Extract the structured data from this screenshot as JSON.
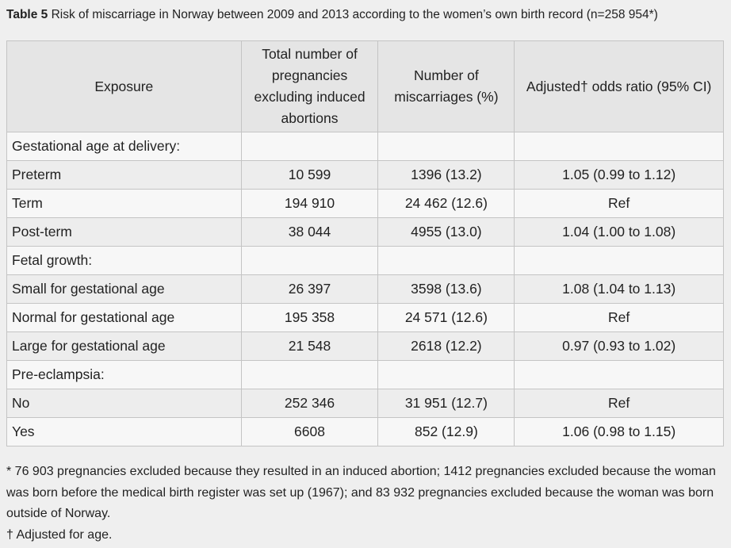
{
  "title": {
    "label": "Table 5",
    "text": " Risk of miscarriage in Norway between 2009 and 2013 according to the women’s own birth record (n=258 954*)"
  },
  "headers": {
    "exposure": "Exposure",
    "total": "Total number of pregnancies excluding induced abortions",
    "miscarriages": "Number of miscarriages (%)",
    "odds": "Adjusted† odds ratio (95% CI)"
  },
  "rows": [
    {
      "label": "Gestational age at delivery:",
      "total": "",
      "misc": "",
      "or": ""
    },
    {
      "label": "Preterm",
      "total": "10 599",
      "misc": "1396 (13.2)",
      "or": "1.05 (0.99 to 1.12)"
    },
    {
      "label": "Term",
      "total": "194 910",
      "misc": "24 462 (12.6)",
      "or": "Ref"
    },
    {
      "label": "Post-term",
      "total": "38 044",
      "misc": "4955 (13.0)",
      "or": "1.04 (1.00 to 1.08)"
    },
    {
      "label": "Fetal growth:",
      "total": "",
      "misc": "",
      "or": ""
    },
    {
      "label": "Small for gestational age",
      "total": "26 397",
      "misc": "3598 (13.6)",
      "or": "1.08 (1.04 to 1.13)"
    },
    {
      "label": "Normal for gestational age",
      "total": "195 358",
      "misc": "24 571 (12.6)",
      "or": "Ref"
    },
    {
      "label": "Large for gestational age",
      "total": "21 548",
      "misc": "2618 (12.2)",
      "or": "0.97 (0.93 to 1.02)"
    },
    {
      "label": "Pre-eclampsia:",
      "total": "",
      "misc": "",
      "or": ""
    },
    {
      "label": "No",
      "total": "252 346",
      "misc": "31 951 (12.7)",
      "or": "Ref"
    },
    {
      "label": "Yes",
      "total": "6608",
      "misc": "852 (12.9)",
      "or": "1.06 (0.98 to 1.15)"
    }
  ],
  "footnotes": {
    "star": "* 76 903 pregnancies excluded because they resulted in an induced abortion; 1412 pregnancies excluded because the woman was born before the medical birth register was set up (1967); and 83 932 pregnancies excluded because the woman was born outside of Norway.",
    "dagger": "† Adjusted for age."
  }
}
